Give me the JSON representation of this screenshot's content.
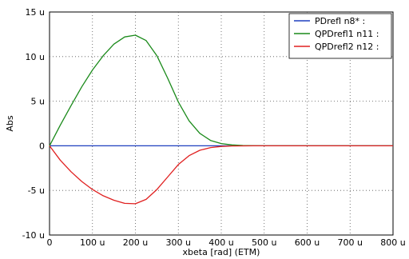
{
  "chart_data": {
    "type": "line",
    "title": "",
    "xlabel": "xbeta [rad] (ETM)",
    "ylabel": "Abs",
    "xlim": [
      0,
      800
    ],
    "ylim": [
      -10,
      15
    ],
    "x_ticks": [
      "0",
      "100 u",
      "200 u",
      "300 u",
      "400 u",
      "500 u",
      "600 u",
      "700 u",
      "800 u"
    ],
    "y_ticks": [
      "-10 u",
      "-5 u",
      "0",
      "5 u",
      "10 u",
      "15 u"
    ],
    "grid": true,
    "legend_position": "top-right",
    "x": [
      0,
      25,
      50,
      75,
      100,
      125,
      150,
      175,
      200,
      225,
      250,
      275,
      300,
      325,
      350,
      375,
      400,
      425,
      450,
      475,
      500,
      550,
      600,
      650,
      700,
      750,
      800
    ],
    "series": [
      {
        "name": "PDrefl n8* :",
        "color": "#1f3fbf",
        "values": [
          0,
          0,
          0,
          0,
          0,
          0,
          0,
          0,
          0,
          0,
          0,
          0,
          0,
          0,
          0,
          0,
          0,
          0,
          0,
          0,
          0,
          0,
          0,
          0,
          0,
          0,
          0
        ]
      },
      {
        "name": "QPDrefl1 n11 :",
        "color": "#1a8a1a",
        "values": [
          0,
          2.3,
          4.5,
          6.6,
          8.5,
          10.1,
          11.4,
          12.2,
          12.4,
          11.8,
          10.1,
          7.6,
          4.9,
          2.8,
          1.4,
          0.6,
          0.25,
          0.1,
          0.04,
          0.01,
          0,
          0,
          0,
          0,
          0,
          0,
          0
        ]
      },
      {
        "name": "QPDrefl2 n12 :",
        "color": "#e02020",
        "values": [
          0,
          -1.6,
          -2.9,
          -4.0,
          -4.9,
          -5.6,
          -6.1,
          -6.45,
          -6.5,
          -6.0,
          -4.9,
          -3.5,
          -2.1,
          -1.1,
          -0.5,
          -0.2,
          -0.07,
          -0.02,
          -0.01,
          0,
          0,
          0,
          0,
          0,
          0,
          0,
          0
        ]
      }
    ]
  }
}
